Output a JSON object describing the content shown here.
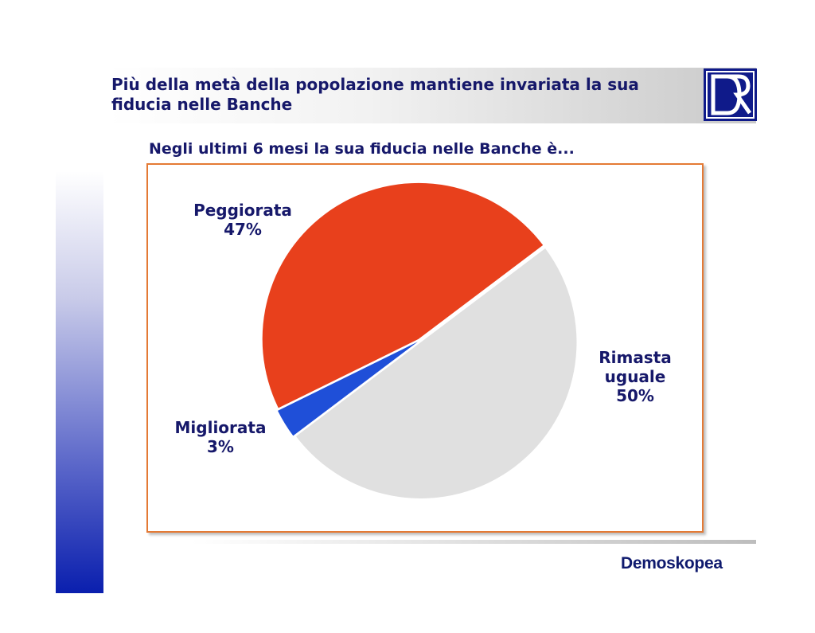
{
  "header": {
    "title_line1": "Più della metà della popolazione mantiene invariata la sua",
    "title_line2": "fiducia nelle Banche",
    "logo_letters": "DR"
  },
  "chart_data": {
    "type": "pie",
    "title": "Negli ultimi 6 mesi la sua fiducia nelle Banche è...",
    "slices": [
      {
        "label": "Rimasta uguale",
        "value": 50,
        "value_label": "50%",
        "color": "#e0e0e0"
      },
      {
        "label": "Migliorata",
        "value": 3,
        "value_label": "3%",
        "color": "#1f4fd8"
      },
      {
        "label": "Peggiorata",
        "value": 47,
        "value_label": "47%",
        "color": "#e8401c"
      }
    ]
  },
  "footer": {
    "brand": "Demoskopea"
  },
  "colors": {
    "title_text": "#16186a",
    "frame_border": "#e47a35",
    "brand_blue": "#0f1a8a"
  }
}
